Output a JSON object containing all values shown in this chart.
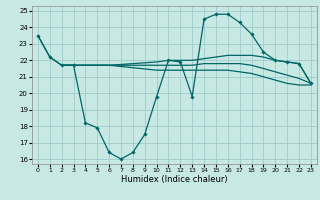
{
  "xlabel": "Humidex (Indice chaleur)",
  "bg_color": "#c8e8e4",
  "grid_color": "#a0cccc",
  "line_color": "#006666",
  "xlim": [
    -0.5,
    23.5
  ],
  "ylim": [
    15.7,
    25.3
  ],
  "yticks": [
    16,
    17,
    18,
    19,
    20,
    21,
    22,
    23,
    24,
    25
  ],
  "xticks": [
    0,
    1,
    2,
    3,
    4,
    5,
    6,
    7,
    8,
    9,
    10,
    11,
    12,
    13,
    14,
    15,
    16,
    17,
    18,
    19,
    20,
    21,
    22,
    23
  ],
  "line_main": {
    "x": [
      0,
      1,
      2,
      3,
      4,
      5,
      6,
      7,
      8,
      9,
      10,
      11,
      12,
      13,
      14,
      15,
      16,
      17,
      18,
      19,
      20,
      21,
      22,
      23
    ],
    "y": [
      23.5,
      22.2,
      21.7,
      21.7,
      18.2,
      17.9,
      16.4,
      16.0,
      16.4,
      17.5,
      19.8,
      22.0,
      21.9,
      19.8,
      24.5,
      24.8,
      24.8,
      24.3,
      23.6,
      22.5,
      22.0,
      21.9,
      21.8,
      20.6
    ]
  },
  "line_upper": {
    "x": [
      0,
      1,
      2,
      3,
      4,
      5,
      6,
      10,
      11,
      12,
      13,
      14,
      15,
      16,
      17,
      18,
      19,
      20,
      21,
      22,
      23
    ],
    "y": [
      23.5,
      22.2,
      21.7,
      21.7,
      21.7,
      21.7,
      21.7,
      21.9,
      22.0,
      22.0,
      22.0,
      22.1,
      22.2,
      22.3,
      22.3,
      22.3,
      22.2,
      22.0,
      21.9,
      21.8,
      20.6
    ]
  },
  "line_mid": {
    "x": [
      2,
      3,
      4,
      5,
      6,
      10,
      11,
      12,
      13,
      14,
      15,
      16,
      17,
      18,
      19,
      20,
      21,
      22,
      23
    ],
    "y": [
      21.7,
      21.7,
      21.7,
      21.7,
      21.7,
      21.7,
      21.7,
      21.7,
      21.7,
      21.8,
      21.8,
      21.8,
      21.8,
      21.7,
      21.5,
      21.3,
      21.1,
      20.9,
      20.6
    ]
  },
  "line_lower": {
    "x": [
      2,
      3,
      4,
      5,
      6,
      10,
      11,
      12,
      13,
      14,
      15,
      16,
      17,
      18,
      19,
      20,
      21,
      22,
      23
    ],
    "y": [
      21.7,
      21.7,
      21.7,
      21.7,
      21.7,
      21.4,
      21.4,
      21.4,
      21.4,
      21.4,
      21.4,
      21.4,
      21.3,
      21.2,
      21.0,
      20.8,
      20.6,
      20.5,
      20.5
    ]
  }
}
